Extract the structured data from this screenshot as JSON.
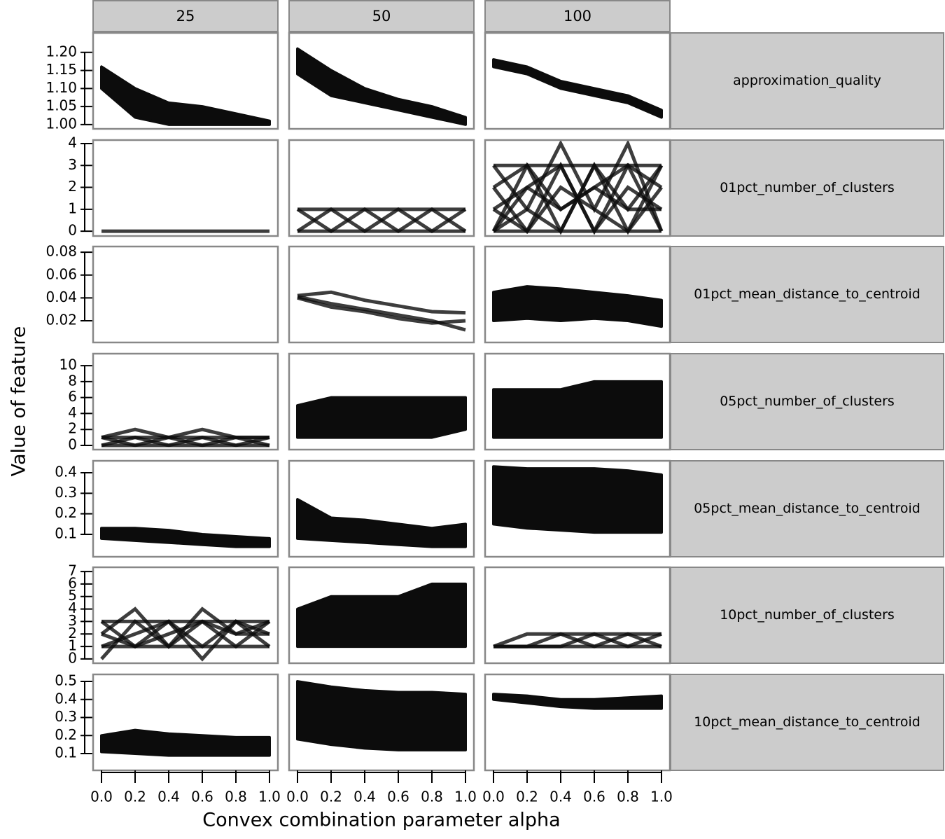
{
  "chart_data": {
    "type": "line",
    "xlabel": "Convex combination parameter alpha",
    "ylabel": "Value of feature",
    "columns": [
      "25",
      "50",
      "100"
    ],
    "x": [
      0,
      0.2,
      0.4,
      0.6,
      0.8,
      1
    ],
    "xlim": [
      -0.05,
      1.05
    ],
    "xticks": [
      {
        "value": 0,
        "label": "0.0"
      },
      0.2,
      0.4,
      0.6,
      0.8,
      {
        "value": 1,
        "label": "1.0"
      }
    ],
    "color": "#0c0c0c",
    "rows": [
      {
        "label": "approximation_quality",
        "ylim": [
          0.988,
          1.254
        ],
        "yticks": [
          {
            "value": 1,
            "label": "1.00"
          },
          {
            "value": 1.05,
            "label": "1.05"
          },
          {
            "value": 1.1,
            "label": "1.10"
          },
          {
            "value": 1.15,
            "label": "1.15"
          },
          {
            "value": 1.2,
            "label": "1.20"
          }
        ],
        "panels": [
          {
            "band": {
              "lower": [
                1.1,
                1.02,
                1.0,
                1.0,
                1.0,
                1.0
              ],
              "upper": [
                1.16,
                1.1,
                1.06,
                1.05,
                1.03,
                1.01
              ]
            },
            "lines": []
          },
          {
            "band": {
              "lower": [
                1.14,
                1.08,
                1.06,
                1.04,
                1.02,
                1.0
              ],
              "upper": [
                1.21,
                1.15,
                1.1,
                1.07,
                1.05,
                1.02
              ]
            },
            "lines": []
          },
          {
            "band": {
              "lower": [
                1.16,
                1.14,
                1.1,
                1.08,
                1.06,
                1.02
              ],
              "upper": [
                1.18,
                1.16,
                1.12,
                1.1,
                1.08,
                1.04
              ]
            },
            "lines": []
          }
        ]
      },
      {
        "label": "01pct_number_of_clusters",
        "ylim": [
          -0.22,
          4.16
        ],
        "yticks": [
          0,
          1,
          2,
          3,
          4
        ],
        "panels": [
          {
            "lines": [
              [
                0,
                0,
                0,
                0,
                0,
                0
              ]
            ]
          },
          {
            "lines": [
              [
                1,
                0,
                1,
                0,
                1,
                0
              ],
              [
                0,
                1,
                0,
                1,
                0,
                1
              ],
              [
                1,
                1,
                1,
                1,
                1,
                1
              ],
              [
                0,
                0,
                0,
                0,
                0,
                0
              ]
            ]
          },
          {
            "lines": [
              [
                2,
                3,
                0,
                3,
                0,
                3
              ],
              [
                0,
                3,
                1,
                2,
                3,
                0
              ],
              [
                1,
                0,
                3,
                0,
                2,
                1
              ],
              [
                2,
                0,
                2,
                1,
                0,
                2
              ],
              [
                3,
                1,
                0,
                3,
                1,
                3
              ],
              [
                0,
                2,
                3,
                0,
                3,
                2
              ],
              [
                1,
                2,
                1,
                2,
                1,
                1
              ],
              [
                0,
                0,
                0,
                0,
                0,
                0
              ],
              [
                3,
                3,
                3,
                3,
                3,
                3
              ],
              [
                0,
                1,
                4,
                1,
                4,
                0
              ]
            ]
          }
        ]
      },
      {
        "label": "01pct_mean_distance_to_centroid",
        "ylim": [
          0.001,
          0.085
        ],
        "yticks": [
          0.02,
          0.04,
          0.06,
          0.08
        ],
        "panels": [
          {
            "lines": []
          },
          {
            "lines": [
              [
                0.041,
                0.035,
                0.03,
                0.025,
                0.02,
                0.012
              ],
              [
                0.042,
                0.045,
                0.038,
                0.033,
                0.028,
                0.027
              ],
              [
                0.04,
                0.032,
                0.028,
                0.022,
                0.018,
                0.02
              ]
            ]
          },
          {
            "band": {
              "lower": [
                0.02,
                0.022,
                0.02,
                0.022,
                0.02,
                0.015
              ],
              "upper": [
                0.045,
                0.05,
                0.048,
                0.045,
                0.042,
                0.038
              ]
            },
            "lines": []
          }
        ]
      },
      {
        "label": "05pct_number_of_clusters",
        "ylim": [
          -0.53,
          11.5
        ],
        "yticks": [
          0,
          2,
          4,
          6,
          8,
          10
        ],
        "panels": [
          {
            "lines": [
              [
                0,
                1,
                0,
                1,
                0,
                1
              ],
              [
                1,
                0,
                1,
                0,
                1,
                0
              ],
              [
                1,
                2,
                1,
                2,
                1,
                1
              ],
              [
                0,
                0,
                0,
                0,
                0,
                0
              ],
              [
                1,
                1,
                1,
                1,
                1,
                1
              ]
            ]
          },
          {
            "band": {
              "lower": [
                1,
                1,
                1,
                1,
                1,
                2
              ],
              "upper": [
                5,
                6,
                6,
                6,
                6,
                6
              ]
            },
            "lines": []
          },
          {
            "band": {
              "lower": [
                1,
                1,
                1,
                1,
                1,
                1
              ],
              "upper": [
                7,
                7,
                7,
                8,
                8,
                8
              ]
            },
            "lines": []
          }
        ]
      },
      {
        "label": "05pct_mean_distance_to_centroid",
        "ylim": [
          -0.009,
          0.458
        ],
        "yticks": [
          0.1,
          0.2,
          0.3,
          0.4
        ],
        "panels": [
          {
            "band": {
              "lower": [
                0.08,
                0.07,
                0.06,
                0.05,
                0.04,
                0.04
              ],
              "upper": [
                0.13,
                0.13,
                0.12,
                0.1,
                0.09,
                0.08
              ]
            },
            "lines": []
          },
          {
            "band": {
              "lower": [
                0.08,
                0.07,
                0.06,
                0.05,
                0.04,
                0.04
              ],
              "upper": [
                0.27,
                0.18,
                0.17,
                0.15,
                0.13,
                0.15
              ]
            },
            "lines": []
          },
          {
            "band": {
              "lower": [
                0.15,
                0.13,
                0.12,
                0.11,
                0.11,
                0.11
              ],
              "upper": [
                0.43,
                0.42,
                0.42,
                0.42,
                0.41,
                0.39
              ]
            },
            "lines": []
          }
        ]
      },
      {
        "label": "10pct_number_of_clusters",
        "ylim": [
          -0.34,
          7.34
        ],
        "yticks": [
          0,
          1,
          2,
          3,
          4,
          5,
          6,
          7
        ],
        "panels": [
          {
            "lines": [
              [
                0,
                3,
                1,
                3,
                2,
                3
              ],
              [
                3,
                1,
                3,
                0,
                3,
                1
              ],
              [
                2,
                4,
                1,
                4,
                2,
                2
              ],
              [
                1,
                2,
                3,
                1,
                3,
                2
              ],
              [
                3,
                3,
                3,
                3,
                3,
                3
              ],
              [
                1,
                1,
                1,
                1,
                1,
                1
              ],
              [
                2,
                1,
                2,
                3,
                1,
                3
              ]
            ]
          },
          {
            "band": {
              "lower": [
                1,
                1,
                1,
                1,
                1,
                1
              ],
              "upper": [
                4,
                5,
                5,
                5,
                6,
                6
              ]
            },
            "lines": []
          },
          {
            "lines": [
              [
                1,
                2,
                2,
                2,
                2,
                2
              ],
              [
                1,
                1,
                1,
                1,
                1,
                1
              ],
              [
                1,
                1,
                2,
                1,
                2,
                1
              ],
              [
                1,
                1,
                1,
                2,
                1,
                2
              ]
            ]
          }
        ]
      },
      {
        "label": "10pct_mean_distance_to_centroid",
        "ylim": [
          0.007,
          0.539
        ],
        "yticks": [
          0.1,
          0.2,
          0.3,
          0.4,
          0.5
        ],
        "panels": [
          {
            "band": {
              "lower": [
                0.11,
                0.1,
                0.09,
                0.09,
                0.09,
                0.09
              ],
              "upper": [
                0.2,
                0.23,
                0.21,
                0.2,
                0.19,
                0.19
              ]
            },
            "lines": []
          },
          {
            "band": {
              "lower": [
                0.18,
                0.15,
                0.13,
                0.12,
                0.12,
                0.12
              ],
              "upper": [
                0.5,
                0.47,
                0.45,
                0.44,
                0.44,
                0.43
              ]
            },
            "lines": []
          },
          {
            "band": {
              "lower": [
                0.4,
                0.38,
                0.36,
                0.35,
                0.35,
                0.35
              ],
              "upper": [
                0.43,
                0.42,
                0.4,
                0.4,
                0.41,
                0.42
              ]
            },
            "lines": []
          }
        ]
      }
    ]
  }
}
